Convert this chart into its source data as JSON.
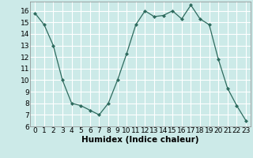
{
  "x": [
    0,
    1,
    2,
    3,
    4,
    5,
    6,
    7,
    8,
    9,
    10,
    11,
    12,
    13,
    14,
    15,
    16,
    17,
    18,
    19,
    20,
    21,
    22,
    23
  ],
  "y": [
    15.8,
    14.8,
    13.0,
    10.0,
    8.0,
    7.8,
    7.4,
    7.0,
    8.0,
    10.0,
    12.3,
    14.8,
    16.0,
    15.5,
    15.6,
    16.0,
    15.3,
    16.5,
    15.3,
    14.8,
    11.8,
    9.3,
    7.8,
    6.5
  ],
  "line_color": "#2e6b5e",
  "marker_color": "#2e6b5e",
  "bg_color": "#cceae8",
  "grid_color": "#ffffff",
  "xlabel": "Humidex (Indice chaleur)",
  "xlabel_fontsize": 7.5,
  "ylim": [
    6,
    16.8
  ],
  "xlim": [
    -0.5,
    23.5
  ],
  "yticks": [
    6,
    7,
    8,
    9,
    10,
    11,
    12,
    13,
    14,
    15,
    16
  ],
  "xtick_labels": [
    "0",
    "1",
    "2",
    "3",
    "4",
    "5",
    "6",
    "7",
    "8",
    "9",
    "10",
    "11",
    "12",
    "13",
    "14",
    "15",
    "16",
    "17",
    "18",
    "19",
    "20",
    "21",
    "22",
    "23"
  ],
  "tick_fontsize": 6.5
}
